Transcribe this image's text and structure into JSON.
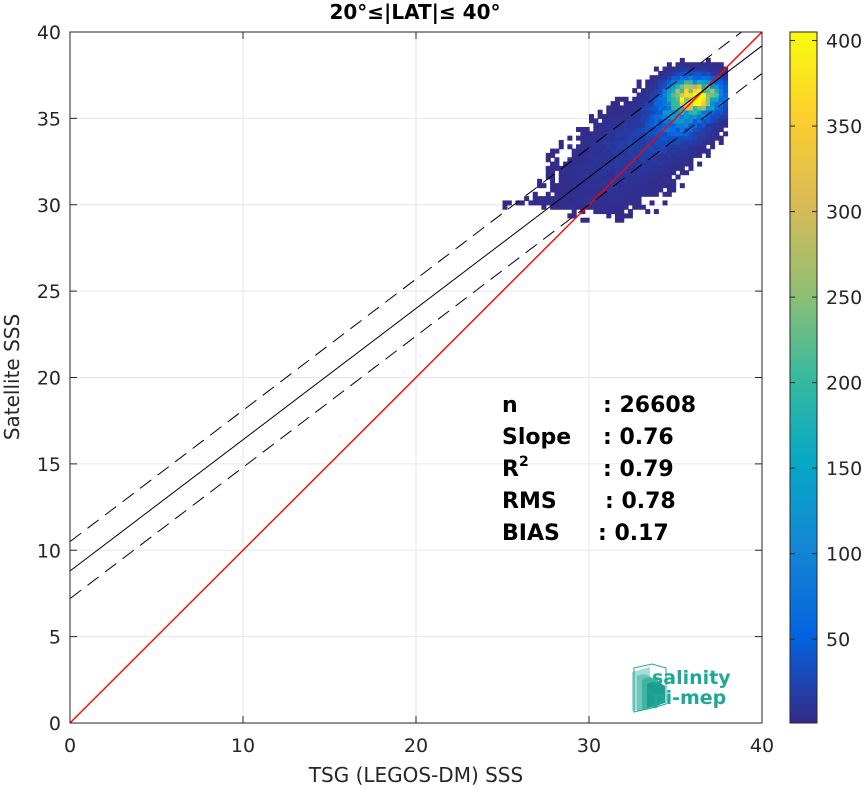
{
  "chart_data": {
    "type": "heatmap",
    "title": "20°≤|LAT|≤ 40°",
    "xlabel": "TSG (LEGOS-DM) SSS",
    "ylabel": "Satellite SSS",
    "xlim": [
      0,
      40
    ],
    "ylim": [
      0,
      40
    ],
    "xticks": [
      "0",
      "10",
      "20",
      "30",
      "40"
    ],
    "yticks": [
      "0",
      "5",
      "10",
      "15",
      "20",
      "25",
      "30",
      "35",
      "40"
    ],
    "grid": true,
    "colorbar": {
      "range": [
        1,
        405
      ],
      "ticks": [
        "50",
        "100",
        "150",
        "200",
        "250",
        "300",
        "350",
        "400"
      ],
      "colormap": "parula"
    },
    "density_clusters": [
      {
        "x": 36.0,
        "y": 36.2,
        "sx": 0.9,
        "sy": 0.6,
        "weight": 400
      },
      {
        "x": 35.0,
        "y": 35.0,
        "sx": 1.0,
        "sy": 0.8,
        "weight": 90
      },
      {
        "x": 33.0,
        "y": 33.5,
        "sx": 1.5,
        "sy": 1.0,
        "weight": 20
      },
      {
        "x": 31.0,
        "y": 31.5,
        "sx": 1.8,
        "sy": 1.2,
        "weight": 8
      },
      {
        "x": 28.0,
        "y": 30.0,
        "sx": 2.0,
        "sy": 0.3,
        "weight": 3
      }
    ],
    "lines": {
      "identity": {
        "slope": 1.0,
        "intercept": 0.0,
        "color": "#ff0000"
      },
      "fit": {
        "slope": 0.76,
        "intercept": 8.8,
        "color": "#000000"
      },
      "fit_upper": {
        "slope": 0.76,
        "intercept": 10.5,
        "style": "dashed"
      },
      "fit_lower": {
        "slope": 0.76,
        "intercept": 7.2,
        "style": "dashed"
      }
    },
    "stats": [
      {
        "label": "n",
        "sup": "",
        "value": ": 26608"
      },
      {
        "label": "Slope",
        "sup": "",
        "value": ": 0.76"
      },
      {
        "label": "R",
        "sup": "2",
        "value": ": 0.79"
      },
      {
        "label": "RMS",
        "sup": "",
        "value": ": 0.78"
      },
      {
        "label": "BIAS",
        "sup": "",
        "value": ": 0.17"
      }
    ]
  },
  "logo": {
    "line1": "salinity",
    "line2": "pi-mep"
  },
  "colors": {
    "identity": "#ff0000",
    "logo_teal": "#1fa89a"
  }
}
